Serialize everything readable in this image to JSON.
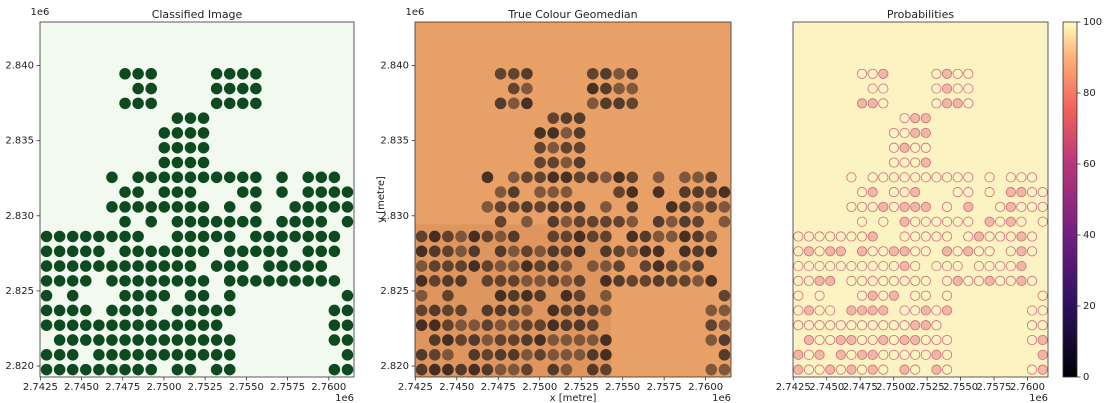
{
  "chart_data": [
    {
      "type": "image",
      "title": "Classified Image",
      "xlim": [
        2.74248,
        2.76153
      ],
      "ylim": [
        2.81927,
        2.8429
      ],
      "xticks": [
        {
          "value": 2.7425,
          "label": "2.7425"
        },
        {
          "value": 2.745,
          "label": "2.7450"
        },
        {
          "value": 2.7475,
          "label": "2.7475"
        },
        {
          "value": 2.75,
          "label": "2.7500"
        },
        {
          "value": 2.7525,
          "label": "2.7525"
        },
        {
          "value": 2.755,
          "label": "2.7550"
        },
        {
          "value": 2.7575,
          "label": "2.7575"
        },
        {
          "value": 2.76,
          "label": "2.7600"
        }
      ],
      "yticks": [
        {
          "value": 2.82,
          "label": "2.820"
        },
        {
          "value": 2.825,
          "label": "2.825"
        },
        {
          "value": 2.83,
          "label": "2.830"
        },
        {
          "value": 2.835,
          "label": "2.835"
        },
        {
          "value": 2.84,
          "label": "2.840"
        }
      ],
      "x_offset": "1e6",
      "y_offset": "1e6"
    },
    {
      "type": "image",
      "title": "True Colour Geomedian",
      "xlabel": "x [metre]",
      "ylabel": "y [metre]",
      "xlim": [
        2.74248,
        2.76153
      ],
      "ylim": [
        2.81927,
        2.8429
      ],
      "xticks": [
        {
          "value": 2.7425,
          "label": "2.7425"
        },
        {
          "value": 2.745,
          "label": "2.7450"
        },
        {
          "value": 2.7475,
          "label": "2.7475"
        },
        {
          "value": 2.75,
          "label": "2.7500"
        },
        {
          "value": 2.7525,
          "label": "2.7525"
        },
        {
          "value": 2.755,
          "label": "2.7550"
        },
        {
          "value": 2.7575,
          "label": "2.7575"
        },
        {
          "value": 2.76,
          "label": "2.7600"
        }
      ],
      "yticks": [
        {
          "value": 2.82,
          "label": "2.820"
        },
        {
          "value": 2.825,
          "label": "2.825"
        },
        {
          "value": 2.83,
          "label": "2.830"
        },
        {
          "value": 2.835,
          "label": "2.835"
        },
        {
          "value": 2.84,
          "label": "2.840"
        }
      ],
      "x_offset": "1e6",
      "y_offset": "1e6"
    },
    {
      "type": "image",
      "title": "Probabilities",
      "xlim": [
        2.74248,
        2.76153
      ],
      "ylim": [
        2.81927,
        2.8429
      ],
      "xticks": [
        {
          "value": 2.7425,
          "label": "2.7425"
        },
        {
          "value": 2.745,
          "label": "2.7450"
        },
        {
          "value": 2.7475,
          "label": "2.7475"
        },
        {
          "value": 2.75,
          "label": "2.7500"
        },
        {
          "value": 2.7525,
          "label": "2.7525"
        },
        {
          "value": 2.755,
          "label": "2.7550"
        },
        {
          "value": 2.7575,
          "label": "2.7575"
        },
        {
          "value": 2.76,
          "label": "2.7600"
        }
      ],
      "x_offset": "1e6"
    },
    {
      "type": "colorbar",
      "colormap": "magma",
      "ylim": [
        0,
        100
      ],
      "yticks": [
        0,
        20,
        40,
        60,
        80,
        100
      ]
    }
  ]
}
